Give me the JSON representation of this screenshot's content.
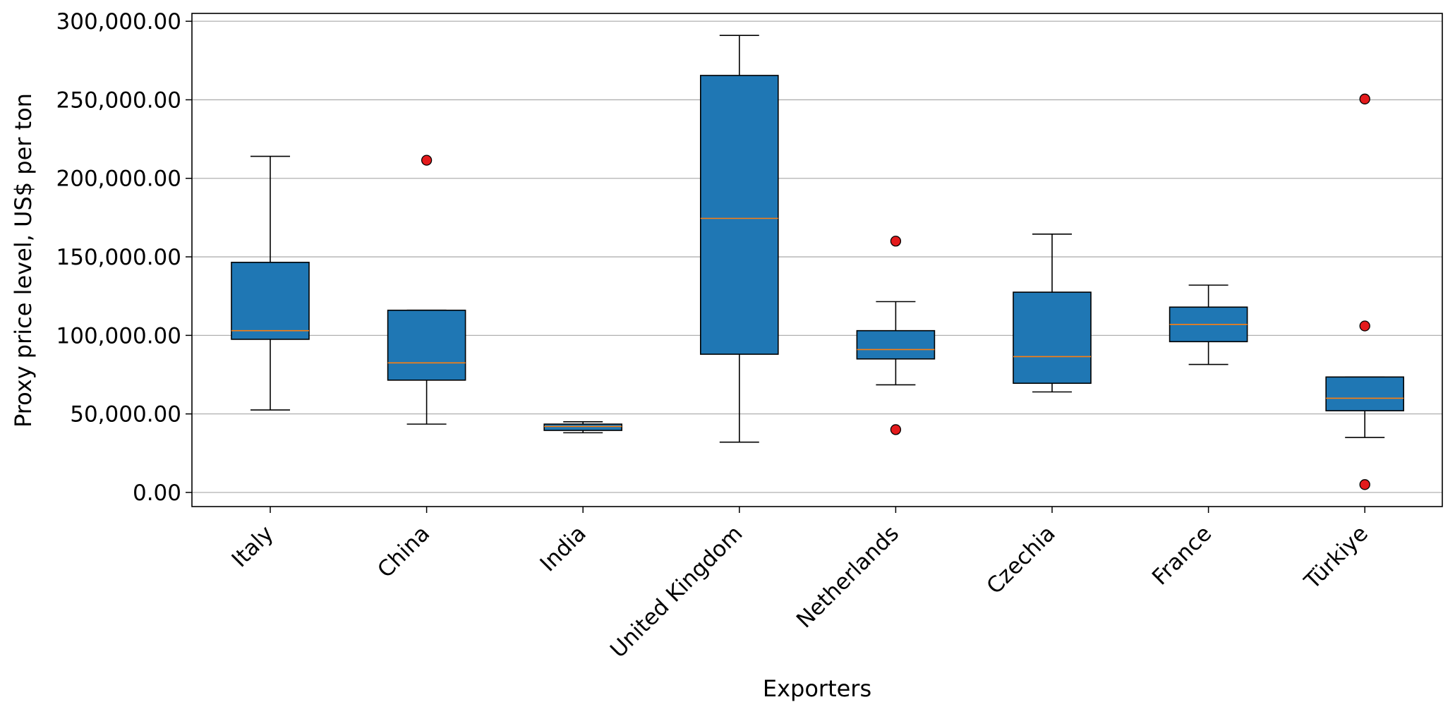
{
  "chart_data": {
    "type": "box",
    "xlabel": "Exporters",
    "ylabel": "Proxy price level, US$ per ton",
    "ylim": [
      -9000,
      305000
    ],
    "yticks": [
      0,
      50000,
      100000,
      150000,
      200000,
      250000,
      300000
    ],
    "ytick_labels": [
      "0.00",
      "50,000.00",
      "100,000.00",
      "150,000.00",
      "200,000.00",
      "250,000.00",
      "300,000.00"
    ],
    "grid": "horizontal",
    "categories": [
      "Italy",
      "China",
      "India",
      "United Kingdom",
      "Netherlands",
      "Czechia",
      "France",
      "Türkiye"
    ],
    "boxes": [
      {
        "category": "Italy",
        "whisker_low": 52500,
        "q1": 97500,
        "median": 103000,
        "q3": 146500,
        "whisker_high": 214000,
        "outliers": []
      },
      {
        "category": "China",
        "whisker_low": 43500,
        "q1": 71500,
        "median": 82500,
        "q3": 116000,
        "whisker_high": 116000,
        "outliers": [
          211500
        ]
      },
      {
        "category": "India",
        "whisker_low": 38000,
        "q1": 39500,
        "median": 42000,
        "q3": 43500,
        "whisker_high": 45000,
        "outliers": []
      },
      {
        "category": "United Kingdom",
        "whisker_low": 32000,
        "q1": 88000,
        "median": 174500,
        "q3": 265500,
        "whisker_high": 291000,
        "outliers": []
      },
      {
        "category": "Netherlands",
        "whisker_low": 68500,
        "q1": 85000,
        "median": 91000,
        "q3": 103000,
        "whisker_high": 121500,
        "outliers": [
          160000,
          40000
        ]
      },
      {
        "category": "Czechia",
        "whisker_low": 64000,
        "q1": 69500,
        "median": 86500,
        "q3": 127500,
        "whisker_high": 164500,
        "outliers": []
      },
      {
        "category": "France",
        "whisker_low": 81500,
        "q1": 96000,
        "median": 107000,
        "q3": 118000,
        "whisker_high": 132000,
        "outliers": []
      },
      {
        "category": "Türkiye",
        "whisker_low": 35000,
        "q1": 52000,
        "median": 60000,
        "q3": 73500,
        "whisker_high": 73500,
        "outliers": [
          250500,
          106000,
          5000
        ]
      }
    ],
    "colors": {
      "box_fill": "#1f77b4",
      "box_edge": "#000000",
      "median": "#ff7f0e",
      "outlier": "#e41a1c",
      "grid": "#b0b0b0"
    }
  }
}
